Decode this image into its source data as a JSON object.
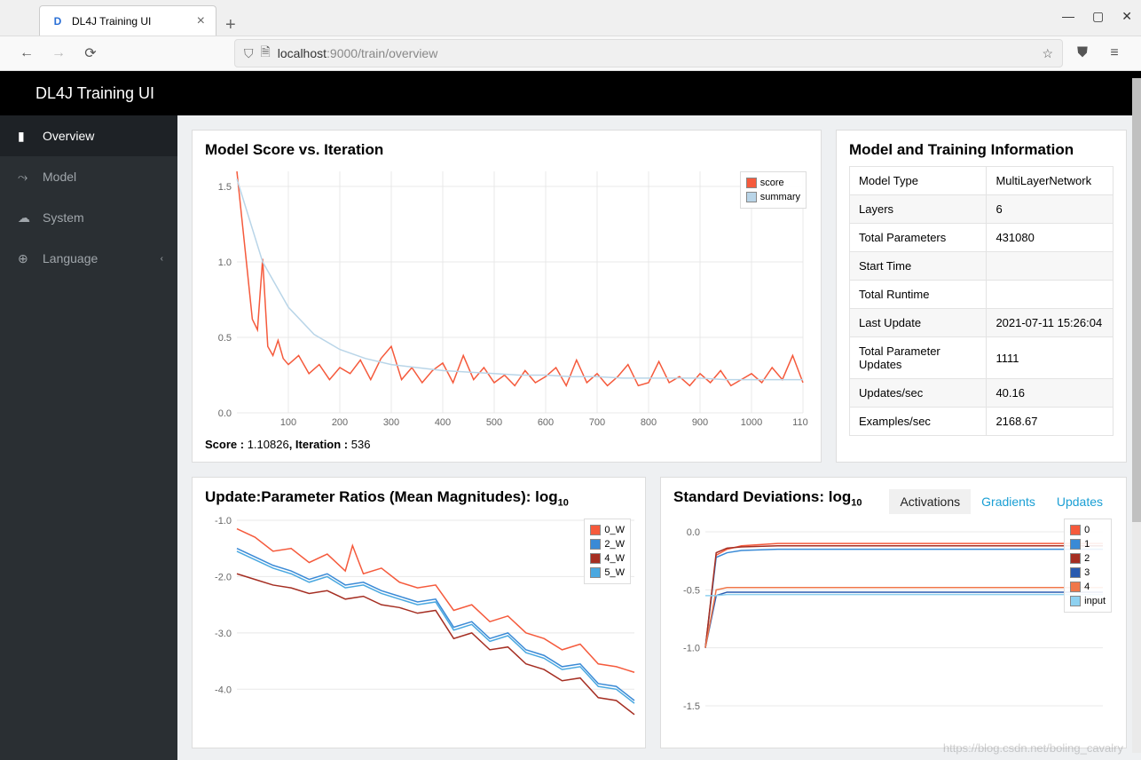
{
  "browser": {
    "tab_title": "DL4J Training UI",
    "url_host": "localhost",
    "url_port": ":9000",
    "url_path": "/train/overview"
  },
  "header": {
    "title": "DL4J Training UI"
  },
  "sidebar": {
    "items": [
      {
        "label": "Overview",
        "active": true
      },
      {
        "label": "Model",
        "active": false
      },
      {
        "label": "System",
        "active": false
      },
      {
        "label": "Language",
        "active": false,
        "chevron": true
      }
    ]
  },
  "score_chart": {
    "title": "Model Score vs. Iteration",
    "type": "line",
    "xlim": [
      0,
      1100
    ],
    "xtick_step": 100,
    "ylim": [
      0,
      1.6
    ],
    "ytick_step": 0.5,
    "grid_color": "#e8e8e8",
    "series": [
      {
        "name": "score",
        "color": "#f55a3c",
        "data": [
          [
            0,
            1.6
          ],
          [
            20,
            0.95
          ],
          [
            30,
            0.62
          ],
          [
            40,
            0.55
          ],
          [
            50,
            1.02
          ],
          [
            60,
            0.44
          ],
          [
            70,
            0.38
          ],
          [
            80,
            0.48
          ],
          [
            90,
            0.36
          ],
          [
            100,
            0.32
          ],
          [
            120,
            0.38
          ],
          [
            140,
            0.26
          ],
          [
            160,
            0.32
          ],
          [
            180,
            0.22
          ],
          [
            200,
            0.3
          ],
          [
            220,
            0.26
          ],
          [
            240,
            0.35
          ],
          [
            260,
            0.22
          ],
          [
            280,
            0.36
          ],
          [
            300,
            0.44
          ],
          [
            320,
            0.22
          ],
          [
            340,
            0.3
          ],
          [
            360,
            0.2
          ],
          [
            380,
            0.28
          ],
          [
            400,
            0.33
          ],
          [
            420,
            0.2
          ],
          [
            440,
            0.38
          ],
          [
            460,
            0.22
          ],
          [
            480,
            0.3
          ],
          [
            500,
            0.2
          ],
          [
            520,
            0.25
          ],
          [
            540,
            0.18
          ],
          [
            560,
            0.28
          ],
          [
            580,
            0.2
          ],
          [
            600,
            0.24
          ],
          [
            620,
            0.3
          ],
          [
            640,
            0.18
          ],
          [
            660,
            0.35
          ],
          [
            680,
            0.2
          ],
          [
            700,
            0.26
          ],
          [
            720,
            0.18
          ],
          [
            740,
            0.24
          ],
          [
            760,
            0.32
          ],
          [
            780,
            0.18
          ],
          [
            800,
            0.2
          ],
          [
            820,
            0.34
          ],
          [
            840,
            0.2
          ],
          [
            860,
            0.24
          ],
          [
            880,
            0.18
          ],
          [
            900,
            0.26
          ],
          [
            920,
            0.2
          ],
          [
            940,
            0.28
          ],
          [
            960,
            0.18
          ],
          [
            980,
            0.22
          ],
          [
            1000,
            0.26
          ],
          [
            1020,
            0.2
          ],
          [
            1040,
            0.3
          ],
          [
            1060,
            0.22
          ],
          [
            1080,
            0.38
          ],
          [
            1100,
            0.2
          ]
        ]
      },
      {
        "name": "summary",
        "color": "#b9d5e8",
        "data": [
          [
            0,
            1.55
          ],
          [
            50,
            1.0
          ],
          [
            100,
            0.7
          ],
          [
            150,
            0.52
          ],
          [
            200,
            0.42
          ],
          [
            250,
            0.36
          ],
          [
            300,
            0.32
          ],
          [
            350,
            0.3
          ],
          [
            400,
            0.28
          ],
          [
            450,
            0.27
          ],
          [
            500,
            0.26
          ],
          [
            550,
            0.25
          ],
          [
            600,
            0.25
          ],
          [
            650,
            0.24
          ],
          [
            700,
            0.24
          ],
          [
            750,
            0.23
          ],
          [
            800,
            0.23
          ],
          [
            850,
            0.23
          ],
          [
            900,
            0.23
          ],
          [
            950,
            0.22
          ],
          [
            1000,
            0.22
          ],
          [
            1050,
            0.22
          ],
          [
            1100,
            0.22
          ]
        ]
      }
    ],
    "footer_score_label": "Score : ",
    "footer_score_value": "1.10826",
    "footer_iter_label": ", Iteration : ",
    "footer_iter_value": "536"
  },
  "info_panel": {
    "title": "Model and Training Information",
    "rows": [
      {
        "k": "Model Type",
        "v": "MultiLayerNetwork"
      },
      {
        "k": "Layers",
        "v": "6"
      },
      {
        "k": "Total Parameters",
        "v": "431080"
      },
      {
        "k": "Start Time",
        "v": ""
      },
      {
        "k": "Total Runtime",
        "v": ""
      },
      {
        "k": "Last Update",
        "v": "2021-07-11 15:26:04"
      },
      {
        "k": "Total Parameter Updates",
        "v": "1111"
      },
      {
        "k": "Updates/sec",
        "v": "40.16"
      },
      {
        "k": "Examples/sec",
        "v": "2168.67"
      }
    ]
  },
  "ratio_chart": {
    "title_a": "Update:Parameter Ratios (Mean Magnitudes): log",
    "title_sub": "10",
    "type": "line",
    "xlim": [
      0,
      1100
    ],
    "ylim": [
      -4.5,
      -1.0
    ],
    "ytick_step": 1.0,
    "grid_color": "#e8e8e8",
    "series": [
      {
        "name": "0_W",
        "color": "#f55a3c"
      },
      {
        "name": "2_W",
        "color": "#3a8ad6"
      },
      {
        "name": "4_W",
        "color": "#a52e22"
      },
      {
        "name": "5_W",
        "color": "#4aa8e0"
      }
    ],
    "paths": {
      "0_W": [
        [
          0,
          -1.15
        ],
        [
          50,
          -1.3
        ],
        [
          100,
          -1.55
        ],
        [
          150,
          -1.5
        ],
        [
          200,
          -1.75
        ],
        [
          250,
          -1.6
        ],
        [
          300,
          -1.9
        ],
        [
          320,
          -1.45
        ],
        [
          350,
          -1.95
        ],
        [
          400,
          -1.85
        ],
        [
          450,
          -2.1
        ],
        [
          500,
          -2.2
        ],
        [
          550,
          -2.15
        ],
        [
          600,
          -2.6
        ],
        [
          650,
          -2.5
        ],
        [
          700,
          -2.8
        ],
        [
          750,
          -2.7
        ],
        [
          800,
          -3.0
        ],
        [
          850,
          -3.1
        ],
        [
          900,
          -3.3
        ],
        [
          950,
          -3.2
        ],
        [
          1000,
          -3.55
        ],
        [
          1050,
          -3.6
        ],
        [
          1100,
          -3.7
        ]
      ],
      "2_W": [
        [
          0,
          -1.5
        ],
        [
          50,
          -1.65
        ],
        [
          100,
          -1.8
        ],
        [
          150,
          -1.9
        ],
        [
          200,
          -2.05
        ],
        [
          250,
          -1.95
        ],
        [
          300,
          -2.15
        ],
        [
          350,
          -2.1
        ],
        [
          400,
          -2.25
        ],
        [
          450,
          -2.35
        ],
        [
          500,
          -2.45
        ],
        [
          550,
          -2.4
        ],
        [
          600,
          -2.9
        ],
        [
          650,
          -2.8
        ],
        [
          700,
          -3.1
        ],
        [
          750,
          -3.0
        ],
        [
          800,
          -3.3
        ],
        [
          850,
          -3.4
        ],
        [
          900,
          -3.6
        ],
        [
          950,
          -3.55
        ],
        [
          1000,
          -3.9
        ],
        [
          1050,
          -3.95
        ],
        [
          1100,
          -4.2
        ]
      ],
      "4_W": [
        [
          0,
          -1.95
        ],
        [
          50,
          -2.05
        ],
        [
          100,
          -2.15
        ],
        [
          150,
          -2.2
        ],
        [
          200,
          -2.3
        ],
        [
          250,
          -2.25
        ],
        [
          300,
          -2.4
        ],
        [
          350,
          -2.35
        ],
        [
          400,
          -2.5
        ],
        [
          450,
          -2.55
        ],
        [
          500,
          -2.65
        ],
        [
          550,
          -2.6
        ],
        [
          600,
          -3.1
        ],
        [
          650,
          -3.0
        ],
        [
          700,
          -3.3
        ],
        [
          750,
          -3.25
        ],
        [
          800,
          -3.55
        ],
        [
          850,
          -3.65
        ],
        [
          900,
          -3.85
        ],
        [
          950,
          -3.8
        ],
        [
          1000,
          -4.15
        ],
        [
          1050,
          -4.2
        ],
        [
          1100,
          -4.45
        ]
      ],
      "5_W": [
        [
          0,
          -1.55
        ],
        [
          50,
          -1.7
        ],
        [
          100,
          -1.85
        ],
        [
          150,
          -1.95
        ],
        [
          200,
          -2.1
        ],
        [
          250,
          -2.0
        ],
        [
          300,
          -2.2
        ],
        [
          350,
          -2.15
        ],
        [
          400,
          -2.3
        ],
        [
          450,
          -2.4
        ],
        [
          500,
          -2.5
        ],
        [
          550,
          -2.45
        ],
        [
          600,
          -2.95
        ],
        [
          650,
          -2.85
        ],
        [
          700,
          -3.15
        ],
        [
          750,
          -3.05
        ],
        [
          800,
          -3.35
        ],
        [
          850,
          -3.45
        ],
        [
          900,
          -3.65
        ],
        [
          950,
          -3.6
        ],
        [
          1000,
          -3.95
        ],
        [
          1050,
          -4.0
        ],
        [
          1100,
          -4.25
        ]
      ]
    }
  },
  "stddev_chart": {
    "title_a": "Standard Deviations: log",
    "title_sub": "10",
    "tabs": [
      {
        "label": "Activations",
        "active": true
      },
      {
        "label": "Gradients",
        "active": false
      },
      {
        "label": "Updates",
        "active": false
      }
    ],
    "type": "line",
    "xlim": [
      0,
      1100
    ],
    "ylim": [
      -1.6,
      0.1
    ],
    "grid_color": "#e8e8e8",
    "series": [
      {
        "name": "0",
        "color": "#f55a3c"
      },
      {
        "name": "1",
        "color": "#3a8ad6"
      },
      {
        "name": "2",
        "color": "#a52e22"
      },
      {
        "name": "3",
        "color": "#2a5bb0"
      },
      {
        "name": "4",
        "color": "#f0774a"
      },
      {
        "name": "input",
        "color": "#8ed1f0"
      }
    ],
    "paths": {
      "0": [
        [
          0,
          -1.0
        ],
        [
          30,
          -0.2
        ],
        [
          60,
          -0.15
        ],
        [
          100,
          -0.12
        ],
        [
          200,
          -0.1
        ],
        [
          400,
          -0.1
        ],
        [
          600,
          -0.1
        ],
        [
          800,
          -0.1
        ],
        [
          1000,
          -0.1
        ],
        [
          1100,
          -0.1
        ]
      ],
      "1": [
        [
          0,
          -1.0
        ],
        [
          30,
          -0.22
        ],
        [
          60,
          -0.18
        ],
        [
          100,
          -0.16
        ],
        [
          200,
          -0.15
        ],
        [
          400,
          -0.15
        ],
        [
          600,
          -0.15
        ],
        [
          800,
          -0.15
        ],
        [
          1000,
          -0.15
        ],
        [
          1100,
          -0.15
        ]
      ],
      "2": [
        [
          0,
          -1.0
        ],
        [
          30,
          -0.18
        ],
        [
          60,
          -0.14
        ],
        [
          100,
          -0.13
        ],
        [
          200,
          -0.12
        ],
        [
          400,
          -0.12
        ],
        [
          600,
          -0.12
        ],
        [
          800,
          -0.12
        ],
        [
          1000,
          -0.12
        ],
        [
          1100,
          -0.12
        ]
      ],
      "3": [
        [
          0,
          -1.0
        ],
        [
          30,
          -0.55
        ],
        [
          60,
          -0.52
        ],
        [
          100,
          -0.52
        ],
        [
          200,
          -0.52
        ],
        [
          400,
          -0.52
        ],
        [
          600,
          -0.52
        ],
        [
          800,
          -0.52
        ],
        [
          1000,
          -0.52
        ],
        [
          1100,
          -0.52
        ]
      ],
      "4": [
        [
          0,
          -1.0
        ],
        [
          30,
          -0.5
        ],
        [
          60,
          -0.48
        ],
        [
          100,
          -0.48
        ],
        [
          200,
          -0.48
        ],
        [
          400,
          -0.48
        ],
        [
          600,
          -0.48
        ],
        [
          800,
          -0.48
        ],
        [
          1000,
          -0.48
        ],
        [
          1100,
          -0.48
        ]
      ],
      "input": [
        [
          0,
          -0.55
        ],
        [
          30,
          -0.55
        ],
        [
          60,
          -0.54
        ],
        [
          100,
          -0.54
        ],
        [
          200,
          -0.54
        ],
        [
          400,
          -0.54
        ],
        [
          600,
          -0.54
        ],
        [
          800,
          -0.54
        ],
        [
          1000,
          -0.54
        ],
        [
          1100,
          -0.54
        ]
      ]
    }
  },
  "watermark": "https://blog.csdn.net/boling_cavalry"
}
